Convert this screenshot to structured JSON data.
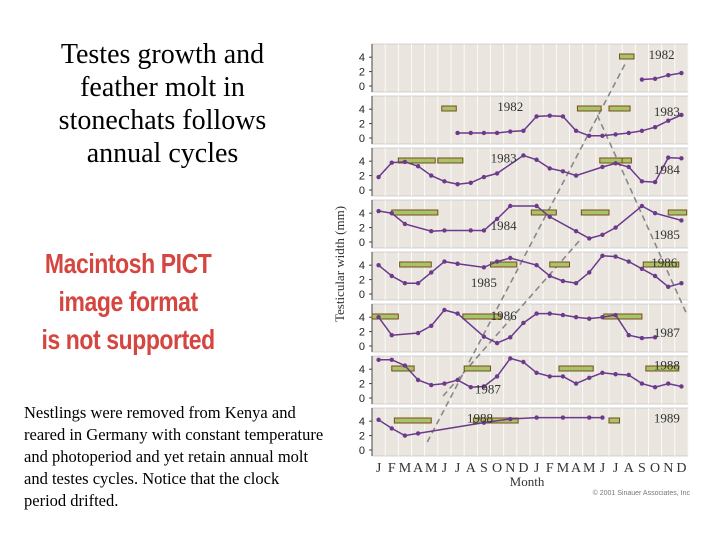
{
  "slide": {
    "title": "Testes growth and\nfeather molt in\nstonechats follows\nannual cycles",
    "image_placeholder": "Macintosh PICT\nimage format\nis not supported",
    "caption": "Nestlings were removed from Kenya and reared in Germany with constant temperature and photoperiod and yet retain annual molt and testes cycles. Notice that the clock period drifted."
  },
  "chart_data": {
    "type": "line",
    "ylabel": "Testicular width (mm)",
    "xlabel": "Month",
    "credit": "© 2001 Sinauer Associates, Inc",
    "x_ticks": [
      "J",
      "F",
      "M",
      "A",
      "M",
      "J",
      "J",
      "A",
      "S",
      "O",
      "N",
      "D",
      "J",
      "F",
      "M",
      "A",
      "M",
      "J",
      "J",
      "A",
      "S",
      "O",
      "N",
      "D"
    ],
    "y_ticks": [
      0,
      2,
      4
    ],
    "ylim": [
      0,
      5
    ],
    "colors": {
      "line": "#6b3a8c",
      "molt_bar": "#a8c46a",
      "molt_border": "#7a4a1a",
      "trend": "#888888",
      "panel": "#eae6df"
    },
    "year_labels": [
      {
        "panel": 0,
        "text": "1982",
        "month": 22.0,
        "level": 4.3
      },
      {
        "panel": 1,
        "text": "1982",
        "month": 10.5,
        "level": 4.3
      },
      {
        "panel": 1,
        "text": "1983",
        "month": 22.4,
        "level": 3.6
      },
      {
        "panel": 2,
        "text": "1983",
        "month": 10.0,
        "level": 4.4
      },
      {
        "panel": 2,
        "text": "1984",
        "month": 22.4,
        "level": 2.8
      },
      {
        "panel": 3,
        "text": "1984",
        "month": 10.0,
        "level": 2.2
      },
      {
        "panel": 3,
        "text": "1985",
        "month": 22.4,
        "level": 1.0
      },
      {
        "panel": 4,
        "text": "1985",
        "month": 8.5,
        "level": 1.5
      },
      {
        "panel": 4,
        "text": "1986",
        "month": 22.2,
        "level": 4.3
      },
      {
        "panel": 5,
        "text": "1986",
        "month": 10.0,
        "level": 4.2
      },
      {
        "panel": 5,
        "text": "1987",
        "month": 22.4,
        "level": 1.8
      },
      {
        "panel": 6,
        "text": "1987",
        "month": 8.8,
        "level": 1.2
      },
      {
        "panel": 6,
        "text": "1988",
        "month": 22.4,
        "level": 4.5
      },
      {
        "panel": 7,
        "text": "1988",
        "month": 8.2,
        "level": 4.4
      },
      {
        "panel": 7,
        "text": "1989",
        "month": 22.4,
        "level": 4.4
      }
    ],
    "series": [
      {
        "panel": 0,
        "x": [
          7.5,
          8.5,
          9.5,
          10.5,
          11.5,
          12.5,
          13.5,
          14.5,
          15.5,
          16.5,
          17.5,
          18.5,
          19.5,
          20.5,
          21.5,
          22.5,
          23.5
        ],
        "y": [
          null,
          null,
          null,
          null,
          null,
          null,
          null,
          null,
          null,
          null,
          null,
          null,
          null,
          0.9,
          1.0,
          1.5,
          1.8
        ],
        "molt": [
          [
            18.8,
            19.9
          ]
        ]
      },
      {
        "panel": 1,
        "x": [
          6.5,
          7.5,
          8.5,
          9.5,
          10.5,
          11.5,
          12.5,
          13.5,
          14.5,
          15.5,
          16.5,
          17.5,
          18.5,
          19.5,
          20.5,
          21.5,
          22.5,
          23.5
        ],
        "y": [
          0.7,
          0.7,
          0.7,
          0.7,
          0.9,
          1.0,
          3.0,
          3.1,
          3.0,
          1.0,
          0.3,
          0.3,
          0.5,
          0.7,
          1.0,
          1.5,
          2.4,
          3.2
        ],
        "molt": [
          [
            5.3,
            6.4
          ],
          [
            15.6,
            17.4
          ],
          [
            18.0,
            19.6
          ]
        ]
      },
      {
        "panel": 2,
        "x": [
          0.5,
          1.5,
          2.5,
          3.5,
          4.5,
          5.5,
          6.5,
          7.5,
          8.5,
          9.5,
          11.5,
          12.5,
          13.5,
          14.5,
          15.5,
          17.5,
          18.5,
          19.5,
          20.5,
          21.5,
          22.5,
          23.5
        ],
        "y": [
          1.8,
          3.8,
          3.9,
          3.3,
          2.0,
          1.2,
          0.8,
          1.0,
          1.8,
          2.3,
          4.8,
          4.2,
          3.0,
          2.6,
          2.0,
          3.2,
          3.7,
          3.2,
          1.2,
          1.1,
          4.5,
          4.4
        ],
        "molt": [
          [
            2.0,
            4.8
          ],
          [
            5.0,
            6.9
          ],
          [
            17.3,
            19.4
          ],
          [
            19.0,
            19.7
          ]
        ]
      },
      {
        "panel": 3,
        "x": [
          0.5,
          1.5,
          2.5,
          4.5,
          5.5,
          7.5,
          8.5,
          9.5,
          10.5,
          12.5,
          13.5,
          15.5,
          16.5,
          17.5,
          18.5,
          20.5,
          21.5,
          23.5
        ],
        "y": [
          4.3,
          4.0,
          2.5,
          1.5,
          1.6,
          1.6,
          1.6,
          3.2,
          5.0,
          5.0,
          3.5,
          1.5,
          0.5,
          1.0,
          2.0,
          5.0,
          4.0,
          3.0
        ],
        "molt": [
          [
            1.5,
            5.0
          ],
          [
            12.1,
            14.0
          ],
          [
            15.9,
            18.0
          ],
          [
            22.5,
            23.9
          ]
        ]
      },
      {
        "panel": 4,
        "x": [
          0.5,
          1.5,
          2.5,
          3.5,
          4.5,
          5.5,
          6.5,
          8.5,
          9.5,
          10.5,
          12.5,
          13.5,
          14.5,
          15.5,
          16.5,
          17.5,
          18.5,
          19.5,
          20.5,
          21.5,
          22.5,
          23.5
        ],
        "y": [
          4.0,
          2.5,
          1.5,
          1.5,
          3.0,
          4.5,
          4.2,
          3.7,
          4.5,
          5.0,
          4.0,
          2.5,
          1.8,
          1.5,
          3.0,
          5.3,
          5.2,
          4.5,
          3.5,
          2.5,
          1.0,
          1.5
        ],
        "molt": [
          [
            2.1,
            4.5
          ],
          [
            9.0,
            11.0
          ],
          [
            13.5,
            15.0
          ],
          [
            20.6,
            23.3
          ]
        ]
      },
      {
        "panel": 5,
        "x": [
          0.5,
          1.5,
          3.5,
          4.5,
          5.5,
          6.5,
          8.5,
          9.5,
          10.5,
          11.5,
          12.5,
          13.5,
          14.5,
          15.5,
          16.5,
          17.5,
          18.5,
          19.5,
          20.5,
          21.5
        ],
        "y": [
          4.0,
          1.5,
          1.8,
          2.8,
          5.0,
          4.5,
          1.3,
          0.4,
          1.2,
          3.2,
          4.5,
          4.5,
          4.3,
          4.0,
          3.8,
          4.0,
          4.3,
          1.5,
          1.1,
          1.2
        ],
        "molt": [
          [
            0.0,
            2.0
          ],
          [
            6.9,
            9.8
          ],
          [
            17.6,
            20.5
          ]
        ]
      },
      {
        "panel": 6,
        "x": [
          0.5,
          1.5,
          2.5,
          3.5,
          4.5,
          5.5,
          6.5,
          7.5,
          8.5,
          9.5,
          10.5,
          11.5,
          12.5,
          13.5,
          14.5,
          15.5,
          16.5,
          17.5,
          18.5,
          19.5,
          20.5,
          21.5,
          22.5,
          23.5
        ],
        "y": [
          5.3,
          5.3,
          4.5,
          2.5,
          1.8,
          2.0,
          2.5,
          1.5,
          1.6,
          3.0,
          5.5,
          5.0,
          3.5,
          3.0,
          3.0,
          2.0,
          2.8,
          3.5,
          3.3,
          3.2,
          2.0,
          1.5,
          2.0,
          1.6
        ],
        "molt": [
          [
            1.5,
            3.2
          ],
          [
            7.0,
            9.0
          ],
          [
            14.2,
            16.8
          ],
          [
            20.8,
            23.3
          ]
        ]
      },
      {
        "panel": 7,
        "x": [
          0.5,
          1.5,
          2.5,
          3.5,
          8.5,
          10.5,
          12.5,
          14.5,
          16.5,
          17.5
        ],
        "y": [
          4.2,
          3.0,
          2.0,
          2.3,
          3.8,
          4.3,
          4.5,
          4.5,
          4.5,
          4.5
        ],
        "molt": [
          [
            1.7,
            4.5
          ],
          [
            7.7,
            11.1
          ],
          [
            18.0,
            18.8
          ]
        ]
      }
    ]
  }
}
